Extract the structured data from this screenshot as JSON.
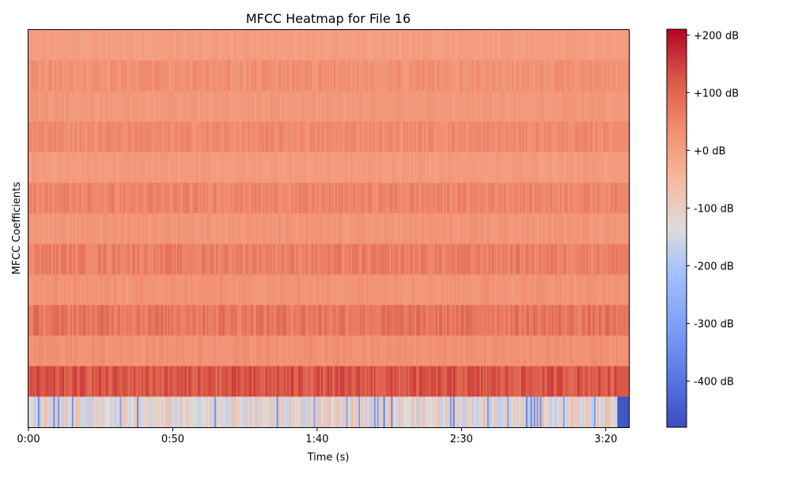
{
  "chart_data": {
    "type": "heatmap",
    "title": "MFCC Heatmap for File 16",
    "xlabel": "Time (s)",
    "ylabel": "MFCC Coefficients",
    "x_ticks": [
      {
        "label": "0:00",
        "seconds": 0
      },
      {
        "label": "0:50",
        "seconds": 50
      },
      {
        "label": "1:40",
        "seconds": 100
      },
      {
        "label": "2:30",
        "seconds": 150
      },
      {
        "label": "3:20",
        "seconds": 200
      }
    ],
    "xlim": [
      0,
      208
    ],
    "rows": 13,
    "row_means_db": [
      5,
      30,
      15,
      40,
      10,
      50,
      20,
      60,
      25,
      75,
      30,
      120,
      -120
    ],
    "row_variation_db": [
      10,
      20,
      12,
      20,
      12,
      22,
      15,
      25,
      15,
      30,
      15,
      35,
      60
    ],
    "colorbar": {
      "colormap": "coolwarm",
      "range_db": [
        -480,
        210
      ],
      "ticks": [
        {
          "label": "+200 dB",
          "value": 200
        },
        {
          "label": "+100 dB",
          "value": 100
        },
        {
          "label": "+0 dB",
          "value": 0
        },
        {
          "label": "-100 dB",
          "value": -100
        },
        {
          "label": "-200 dB",
          "value": -200
        },
        {
          "label": "-300 dB",
          "value": -300
        },
        {
          "label": "-400 dB",
          "value": -400
        }
      ]
    },
    "grid": false
  }
}
